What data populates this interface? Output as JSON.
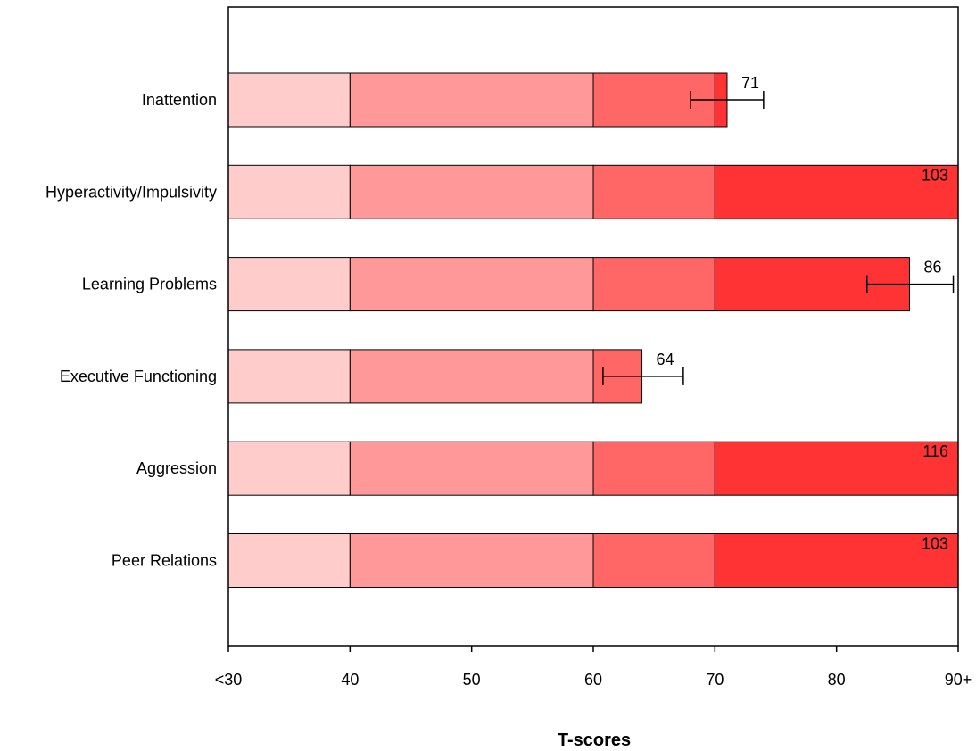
{
  "chart_data": {
    "type": "bar",
    "orientation": "horizontal",
    "title": "",
    "xlabel": "T-scores",
    "ylabel": "",
    "xlim": [
      30,
      90
    ],
    "x_ticks": [
      30,
      40,
      50,
      60,
      70,
      80,
      90
    ],
    "x_tick_labels": [
      "<30",
      "40",
      "50",
      "60",
      "70",
      "80",
      "90+"
    ],
    "grid": false,
    "band_edges": [
      30,
      40,
      60,
      70,
      90
    ],
    "band_colors": [
      "#ffcccc",
      "#ff9999",
      "#ff6666",
      "#ff3333"
    ],
    "categories": [
      "Inattention",
      "Hyperactivity/Impulsivity",
      "Learning Problems",
      "Executive Functioning",
      "Aggression",
      "Peer Relations"
    ],
    "values": [
      71,
      103,
      86,
      64,
      116,
      103
    ],
    "value_labels": [
      "71",
      "103",
      "86",
      "64",
      "116",
      "103"
    ],
    "error_bars": [
      {
        "low": 68,
        "high": 74
      },
      null,
      {
        "low": 82.5,
        "high": 89.6
      },
      {
        "low": 60.8,
        "high": 67.4
      },
      null,
      null
    ]
  }
}
